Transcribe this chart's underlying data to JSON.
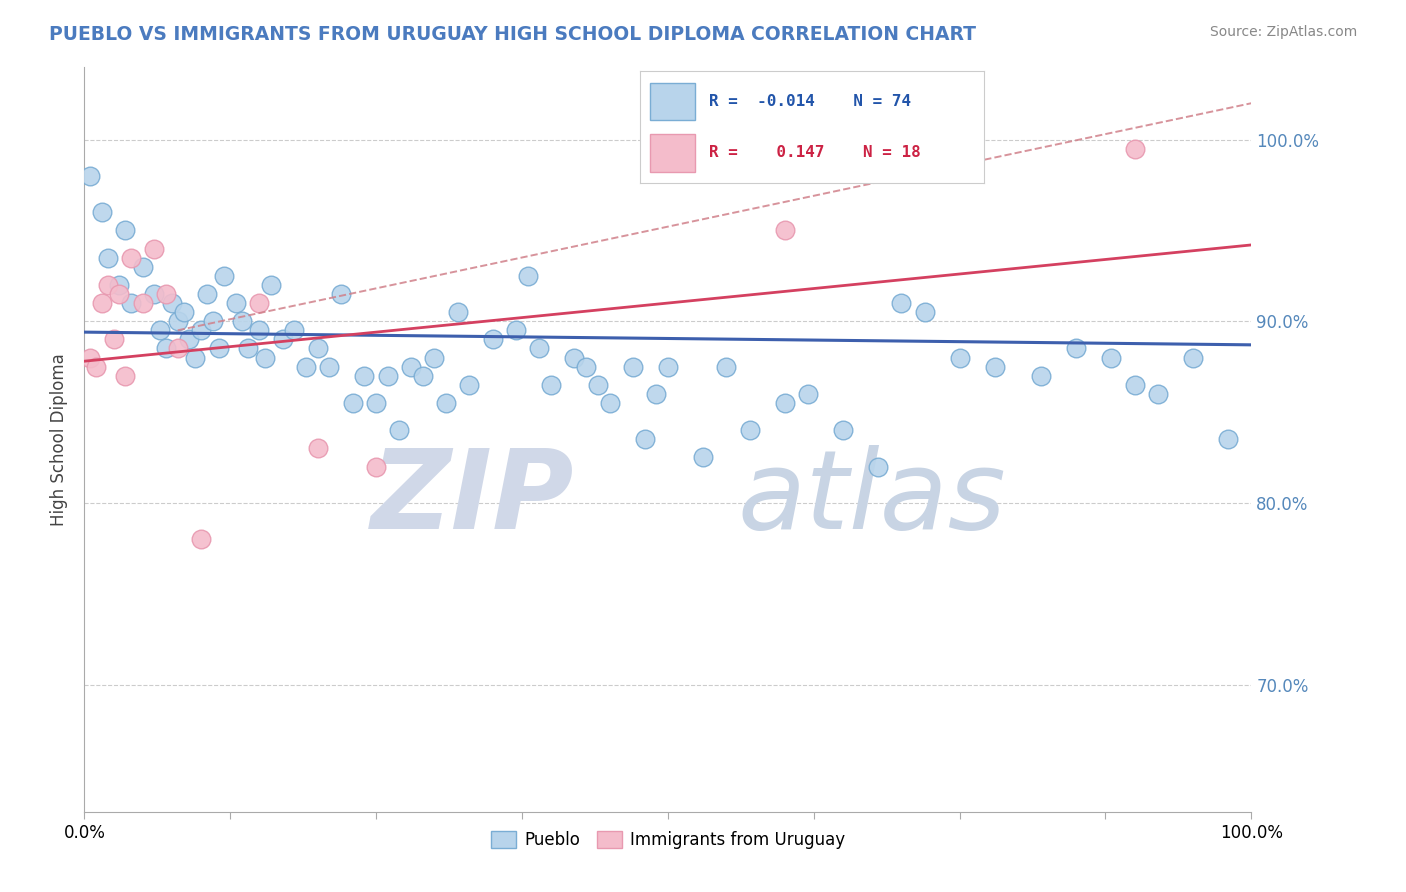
{
  "title": "PUEBLO VS IMMIGRANTS FROM URUGUAY HIGH SCHOOL DIPLOMA CORRELATION CHART",
  "source": "Source: ZipAtlas.com",
  "ylabel": "High School Diploma",
  "r_pueblo": -0.014,
  "n_pueblo": 74,
  "r_uruguay": 0.147,
  "n_uruguay": 18,
  "blue_color": "#b8d4eb",
  "blue_edge": "#7aadd4",
  "pink_color": "#f4bccb",
  "pink_edge": "#e899b0",
  "blue_line_color": "#3d5fad",
  "pink_line_color": "#d44060",
  "dashed_line_color": "#d0808a",
  "watermark_zip_color": "#d0d8e8",
  "watermark_atlas_color": "#c8d4e4",
  "background_color": "#ffffff",
  "xlim": [
    0.0,
    1.0
  ],
  "ylim": [
    0.63,
    1.04
  ],
  "y_ticks": [
    0.7,
    0.8,
    0.9,
    1.0
  ],
  "y_tick_labels": [
    "70.0%",
    "80.0%",
    "90.0%",
    "100.0%"
  ],
  "x_ticks": [
    0.0,
    0.125,
    0.25,
    0.375,
    0.5,
    0.625,
    0.75,
    0.875,
    1.0
  ],
  "x_tick_labels_show": [
    "0.0%",
    "",
    "",
    "",
    "",
    "",
    "",
    "",
    "100.0%"
  ],
  "pueblo_x": [
    0.5,
    1.5,
    2.0,
    3.0,
    3.5,
    4.0,
    5.0,
    6.0,
    6.5,
    7.0,
    7.5,
    8.0,
    8.5,
    9.0,
    9.5,
    10.0,
    10.5,
    11.0,
    11.5,
    12.0,
    13.0,
    13.5,
    14.0,
    15.0,
    15.5,
    16.0,
    17.0,
    18.0,
    19.0,
    20.0,
    21.0,
    22.0,
    23.0,
    24.0,
    25.0,
    26.0,
    27.0,
    28.0,
    29.0,
    30.0,
    31.0,
    32.0,
    33.0,
    35.0,
    37.0,
    38.0,
    39.0,
    40.0,
    42.0,
    43.0,
    44.0,
    45.0,
    47.0,
    48.0,
    49.0,
    50.0,
    53.0,
    55.0,
    57.0,
    60.0,
    62.0,
    65.0,
    68.0,
    70.0,
    72.0,
    75.0,
    78.0,
    82.0,
    85.0,
    88.0,
    90.0,
    92.0,
    95.0,
    98.0
  ],
  "pueblo_y": [
    98.0,
    96.0,
    93.5,
    92.0,
    95.0,
    91.0,
    93.0,
    91.5,
    89.5,
    88.5,
    91.0,
    90.0,
    90.5,
    89.0,
    88.0,
    89.5,
    91.5,
    90.0,
    88.5,
    92.5,
    91.0,
    90.0,
    88.5,
    89.5,
    88.0,
    92.0,
    89.0,
    89.5,
    87.5,
    88.5,
    87.5,
    91.5,
    85.5,
    87.0,
    85.5,
    87.0,
    84.0,
    87.5,
    87.0,
    88.0,
    85.5,
    90.5,
    86.5,
    89.0,
    89.5,
    92.5,
    88.5,
    86.5,
    88.0,
    87.5,
    86.5,
    85.5,
    87.5,
    83.5,
    86.0,
    87.5,
    82.5,
    87.5,
    84.0,
    85.5,
    86.0,
    84.0,
    82.0,
    91.0,
    90.5,
    88.0,
    87.5,
    87.0,
    88.5,
    88.0,
    86.5,
    86.0,
    88.0,
    83.5
  ],
  "uruguay_x": [
    0.5,
    1.0,
    1.5,
    2.0,
    2.5,
    3.0,
    3.5,
    4.0,
    5.0,
    6.0,
    7.0,
    8.0,
    10.0,
    15.0,
    20.0,
    25.0,
    60.0,
    90.0
  ],
  "uruguay_y": [
    88.0,
    87.5,
    91.0,
    92.0,
    89.0,
    91.5,
    87.0,
    93.5,
    91.0,
    94.0,
    91.5,
    88.5,
    78.0,
    91.0,
    83.0,
    82.0,
    95.0,
    99.5
  ],
  "blue_trend_start_y": 0.894,
  "blue_trend_end_y": 0.887,
  "pink_trend_start_y": 0.878,
  "pink_trend_end_y": 0.942,
  "dashed_trend_start_x": 0.08,
  "dashed_trend_start_y": 0.895,
  "dashed_trend_end_x": 1.0,
  "dashed_trend_end_y": 1.02
}
